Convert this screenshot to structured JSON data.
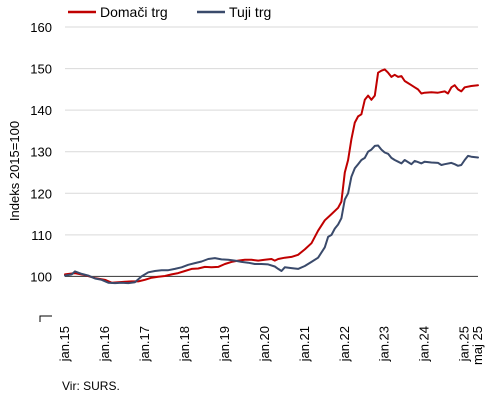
{
  "chart_data": {
    "type": "line",
    "ylabel": "Indeks 2015=100",
    "ylim": [
      90,
      160
    ],
    "y_ticks": [
      100,
      110,
      120,
      130,
      140,
      150,
      160
    ],
    "y_axis_break": true,
    "baseline_value": 100,
    "x_tick_labels": [
      "jan.15",
      "jan.16",
      "jan.17",
      "jan.18",
      "jan.19",
      "jan.20",
      "jan.21",
      "jan.22",
      "jan.23",
      "jan.24",
      "jan.25",
      "maj 25"
    ],
    "x_tick_months": [
      0,
      12,
      24,
      36,
      48,
      60,
      72,
      84,
      96,
      108,
      120,
      124
    ],
    "x_range_months": [
      0,
      124
    ],
    "legend_position": "top-left",
    "grid": "horizontal",
    "source": "Vir: SURS.",
    "series": [
      {
        "name": "Domači trg",
        "color": "#c00000",
        "points": [
          [
            0,
            100.5
          ],
          [
            3,
            100.8
          ],
          [
            6,
            100.3
          ],
          [
            9,
            99.6
          ],
          [
            12,
            99.2
          ],
          [
            14,
            98.5
          ],
          [
            16,
            98.6
          ],
          [
            18,
            98.7
          ],
          [
            20,
            98.8
          ],
          [
            22,
            98.8
          ],
          [
            24,
            99.2
          ],
          [
            26,
            99.7
          ],
          [
            28,
            99.9
          ],
          [
            30,
            100.1
          ],
          [
            32,
            100.5
          ],
          [
            34,
            100.8
          ],
          [
            36,
            101.3
          ],
          [
            38,
            101.8
          ],
          [
            40,
            101.9
          ],
          [
            42,
            102.3
          ],
          [
            44,
            102.2
          ],
          [
            46,
            102.3
          ],
          [
            48,
            103
          ],
          [
            50,
            103.5
          ],
          [
            52,
            103.8
          ],
          [
            54,
            104
          ],
          [
            56,
            104
          ],
          [
            58,
            103.8
          ],
          [
            60,
            104
          ],
          [
            62,
            104.2
          ],
          [
            63,
            103.8
          ],
          [
            64,
            104.2
          ],
          [
            66,
            104.5
          ],
          [
            68,
            104.7
          ],
          [
            70,
            105.2
          ],
          [
            72,
            106.5
          ],
          [
            74,
            108
          ],
          [
            76,
            111
          ],
          [
            78,
            113.5
          ],
          [
            80,
            115
          ],
          [
            82,
            116.5
          ],
          [
            83,
            118
          ],
          [
            84,
            125
          ],
          [
            85,
            128
          ],
          [
            86,
            133
          ],
          [
            87,
            137
          ],
          [
            88,
            138.5
          ],
          [
            89,
            139
          ],
          [
            90,
            142.5
          ],
          [
            91,
            143.5
          ],
          [
            92,
            142.5
          ],
          [
            93,
            143.5
          ],
          [
            94,
            149
          ],
          [
            95,
            149.5
          ],
          [
            96,
            149.8
          ],
          [
            97,
            149
          ],
          [
            98,
            148
          ],
          [
            99,
            148.5
          ],
          [
            100,
            148
          ],
          [
            101,
            148.2
          ],
          [
            102,
            147
          ],
          [
            103,
            146.5
          ],
          [
            104,
            146
          ],
          [
            105,
            145.5
          ],
          [
            106,
            145
          ],
          [
            107,
            144
          ],
          [
            108,
            144.2
          ],
          [
            110,
            144.3
          ],
          [
            112,
            144.2
          ],
          [
            114,
            144.5
          ],
          [
            115,
            144
          ],
          [
            116,
            145.5
          ],
          [
            117,
            146
          ],
          [
            118,
            145
          ],
          [
            119,
            144.5
          ],
          [
            120,
            145.5
          ],
          [
            122,
            145.8
          ],
          [
            124,
            146
          ]
        ]
      },
      {
        "name": "Tuji trg",
        "color": "#3a4a6b",
        "points": [
          [
            0,
            100.2
          ],
          [
            2,
            100.5
          ],
          [
            3,
            101.2
          ],
          [
            5,
            100.6
          ],
          [
            7,
            100.2
          ],
          [
            9,
            99.5
          ],
          [
            11,
            99.2
          ],
          [
            13,
            98.5
          ],
          [
            15,
            98.4
          ],
          [
            17,
            98.5
          ],
          [
            19,
            98.4
          ],
          [
            21,
            98.6
          ],
          [
            23,
            100
          ],
          [
            25,
            101
          ],
          [
            27,
            101.3
          ],
          [
            29,
            101.5
          ],
          [
            31,
            101.5
          ],
          [
            33,
            101.8
          ],
          [
            35,
            102.2
          ],
          [
            37,
            102.8
          ],
          [
            39,
            103.2
          ],
          [
            41,
            103.6
          ],
          [
            43,
            104.2
          ],
          [
            45,
            104.4
          ],
          [
            47,
            104.1
          ],
          [
            49,
            104
          ],
          [
            51,
            103.8
          ],
          [
            53,
            103.5
          ],
          [
            55,
            103.3
          ],
          [
            57,
            103
          ],
          [
            59,
            103
          ],
          [
            61,
            102.9
          ],
          [
            63,
            102.4
          ],
          [
            64,
            101.8
          ],
          [
            65,
            101.3
          ],
          [
            66,
            102.2
          ],
          [
            68,
            102
          ],
          [
            70,
            101.8
          ],
          [
            72,
            102.5
          ],
          [
            74,
            103.5
          ],
          [
            76,
            104.5
          ],
          [
            78,
            107
          ],
          [
            79,
            109.5
          ],
          [
            80,
            110
          ],
          [
            81,
            111.5
          ],
          [
            82,
            112.5
          ],
          [
            83,
            114
          ],
          [
            84,
            118.5
          ],
          [
            85,
            120
          ],
          [
            86,
            124
          ],
          [
            87,
            126
          ],
          [
            88,
            127
          ],
          [
            89,
            128
          ],
          [
            90,
            128.5
          ],
          [
            91,
            130
          ],
          [
            92,
            130.5
          ],
          [
            93,
            131.4
          ],
          [
            94,
            131.5
          ],
          [
            95,
            130.5
          ],
          [
            96,
            129.8
          ],
          [
            97,
            129.5
          ],
          [
            98,
            128.5
          ],
          [
            99,
            128
          ],
          [
            100,
            127.6
          ],
          [
            101,
            127.2
          ],
          [
            102,
            128
          ],
          [
            103,
            127.5
          ],
          [
            104,
            127
          ],
          [
            105,
            127.8
          ],
          [
            106,
            127.5
          ],
          [
            107,
            127.2
          ],
          [
            108,
            127.6
          ],
          [
            110,
            127.4
          ],
          [
            112,
            127.3
          ],
          [
            113,
            126.8
          ],
          [
            114,
            127
          ],
          [
            116,
            127.3
          ],
          [
            117,
            127
          ],
          [
            118,
            126.6
          ],
          [
            119,
            126.8
          ],
          [
            120,
            128
          ],
          [
            121,
            129
          ],
          [
            122,
            128.8
          ],
          [
            124,
            128.6
          ]
        ]
      }
    ]
  }
}
